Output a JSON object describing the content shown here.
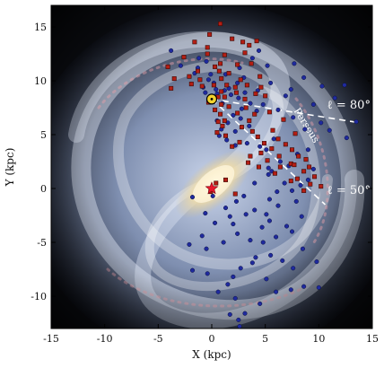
{
  "chart_data": {
    "type": "scatter",
    "title": "",
    "xlabel": "X (kpc)",
    "ylabel": "Y (kpc)",
    "xlim": [
      -15,
      15
    ],
    "ylim": [
      -13,
      17
    ],
    "xticks": [
      -15,
      -10,
      -5,
      0,
      5,
      10,
      15
    ],
    "yticks": [
      -10,
      -5,
      0,
      5,
      10,
      15
    ],
    "background": "Milky Way spiral galaxy artist's impression",
    "grid": false,
    "colors": {
      "blue_series": "#1f2a9e",
      "red_series": "#b41e14",
      "sun": "#f2d22e",
      "galactic_center": "#e8182a",
      "annotation": "#ffffff"
    },
    "annotations": [
      {
        "text": "ℓ = 80°",
        "x": 12.8,
        "y": 7.4
      },
      {
        "text": "ℓ = 50°",
        "x": 12.8,
        "y": -0.5
      },
      {
        "text": "Perseus",
        "x": 8.6,
        "y": 5.7,
        "rotation_deg": 58
      }
    ],
    "lines": [
      {
        "name": "l80",
        "from": [
          0.0,
          8.3
        ],
        "to": [
          13.8,
          6.1
        ]
      },
      {
        "name": "l50",
        "from": [
          0.0,
          8.3
        ],
        "to": [
          10.6,
          -1.5
        ]
      }
    ],
    "markers": [
      {
        "name": "sun",
        "shape": "circle",
        "x": 0.0,
        "y": 8.3
      },
      {
        "name": "galactic-center",
        "shape": "star",
        "x": 0.0,
        "y": 0.0
      }
    ],
    "series": [
      {
        "marker": "circle",
        "points": [
          [
            -3.8,
            12.8
          ],
          [
            -1.2,
            12.1
          ],
          [
            -0.5,
            11.8
          ],
          [
            -1.3,
            11.2
          ],
          [
            -0.3,
            10.1
          ],
          [
            0.2,
            9.8
          ],
          [
            -0.8,
            9.4
          ],
          [
            -0.6,
            8.9
          ],
          [
            0.5,
            8.8
          ],
          [
            1.2,
            9.1
          ],
          [
            1.8,
            8.7
          ],
          [
            2.5,
            8.4
          ],
          [
            3.1,
            8.9
          ],
          [
            3.6,
            7.9
          ],
          [
            4.2,
            7.2
          ],
          [
            2.8,
            7.4
          ],
          [
            2.0,
            6.8
          ],
          [
            1.5,
            6.1
          ],
          [
            0.9,
            5.5
          ],
          [
            0.5,
            6.3
          ],
          [
            0.7,
            4.9
          ],
          [
            1.4,
            4.5
          ],
          [
            2.2,
            4.0
          ],
          [
            3.3,
            4.2
          ],
          [
            4.5,
            3.9
          ],
          [
            5.1,
            3.6
          ],
          [
            5.8,
            4.6
          ],
          [
            6.4,
            2.5
          ],
          [
            7.2,
            2.1
          ],
          [
            8.0,
            3.2
          ],
          [
            9.0,
            3.6
          ],
          [
            9.5,
            1.8
          ],
          [
            8.3,
            0.3
          ],
          [
            9.0,
            0.8
          ],
          [
            7.5,
            -0.2
          ],
          [
            6.8,
            0.5
          ],
          [
            5.3,
            1.3
          ],
          [
            4.0,
            0.5
          ],
          [
            3.0,
            -0.7
          ],
          [
            2.3,
            -1.2
          ],
          [
            1.7,
            -2.6
          ],
          [
            2.0,
            -3.3
          ],
          [
            2.4,
            -4.2
          ],
          [
            3.6,
            -4.8
          ],
          [
            4.8,
            -5.0
          ],
          [
            4.1,
            -6.4
          ],
          [
            3.8,
            -6.9
          ],
          [
            2.7,
            -7.4
          ],
          [
            2.0,
            -8.2
          ],
          [
            1.5,
            -8.9
          ],
          [
            0.6,
            -9.6
          ],
          [
            2.2,
            -10.2
          ],
          [
            4.5,
            -10.7
          ],
          [
            6.0,
            -9.6
          ],
          [
            7.4,
            -9.4
          ],
          [
            8.6,
            -9.1
          ],
          [
            10.0,
            -9.2
          ],
          [
            7.6,
            -7.4
          ],
          [
            6.6,
            -6.7
          ],
          [
            5.5,
            -6.2
          ],
          [
            6.0,
            -4.5
          ],
          [
            7.5,
            -4.0
          ],
          [
            8.4,
            -2.6
          ],
          [
            7.0,
            -3.5
          ],
          [
            5.4,
            -3.0
          ],
          [
            4.0,
            -2.0
          ],
          [
            6.2,
            -1.6
          ],
          [
            5.4,
            -1.0
          ],
          [
            2.6,
            -12.8
          ],
          [
            3.1,
            -11.6
          ],
          [
            1.7,
            -11.7
          ],
          [
            5.1,
            -8.4
          ],
          [
            -1.8,
            -7.6
          ],
          [
            -0.4,
            -7.9
          ],
          [
            -2.1,
            -5.2
          ],
          [
            -0.9,
            -4.4
          ],
          [
            0.3,
            -3.2
          ],
          [
            1.3,
            -1.8
          ],
          [
            -1.8,
            -0.8
          ],
          [
            -0.6,
            -2.3
          ],
          [
            0.1,
            -0.7
          ],
          [
            11.0,
            5.4
          ],
          [
            12.6,
            4.7
          ],
          [
            10.3,
            9.5
          ],
          [
            11.5,
            8.4
          ],
          [
            9.5,
            7.8
          ],
          [
            8.6,
            10.3
          ],
          [
            7.4,
            9.2
          ],
          [
            5.5,
            9.8
          ],
          [
            5.2,
            11.4
          ],
          [
            4.4,
            12.8
          ],
          [
            3.8,
            12.1
          ],
          [
            2.6,
            11.2
          ],
          [
            1.3,
            10.6
          ],
          [
            -2.9,
            11.4
          ],
          [
            -1.6,
            10.7
          ],
          [
            -0.2,
            8.1
          ],
          [
            1.0,
            7.9
          ],
          [
            2.2,
            5.3
          ],
          [
            3.5,
            5.8
          ],
          [
            6.2,
            7.3
          ],
          [
            7.6,
            6.6
          ],
          [
            8.7,
            5.5
          ],
          [
            10.2,
            6.1
          ],
          [
            12.4,
            9.6
          ],
          [
            13.5,
            6.2
          ],
          [
            7.7,
            11.6
          ],
          [
            6.9,
            8.6
          ],
          [
            4.3,
            9.1
          ],
          [
            3.0,
            10.3
          ],
          [
            2.4,
            9.8
          ],
          [
            1.6,
            9.3
          ],
          [
            0.4,
            9.2
          ],
          [
            -0.1,
            10.6
          ],
          [
            5.6,
            1.6
          ],
          [
            6.1,
            -0.3
          ],
          [
            8.5,
            -5.6
          ],
          [
            9.8,
            -6.8
          ],
          [
            4.7,
            -3.6
          ],
          [
            3.2,
            -2.4
          ],
          [
            1.1,
            -5.0
          ],
          [
            -0.5,
            -5.6
          ],
          [
            2.5,
            -12.2
          ],
          [
            5.3,
            1.9
          ],
          [
            5.1,
            -2.4
          ],
          [
            7.9,
            -1.2
          ],
          [
            4.8,
            7.8
          ],
          [
            2.7,
            6.5
          ]
        ]
      },
      {
        "marker": "square",
        "points": [
          [
            -1.6,
            13.6
          ],
          [
            -0.4,
            13.1
          ],
          [
            0.8,
            15.3
          ],
          [
            -0.2,
            14.3
          ],
          [
            1.9,
            13.9
          ],
          [
            3.5,
            13.3
          ],
          [
            4.2,
            13.7
          ],
          [
            3.1,
            12.6
          ],
          [
            2.4,
            11.5
          ],
          [
            0.8,
            11.6
          ],
          [
            -1.3,
            10.9
          ],
          [
            -2.1,
            10.4
          ],
          [
            -3.5,
            10.2
          ],
          [
            -4.1,
            11.3
          ],
          [
            -2.6,
            12.2
          ],
          [
            -1.1,
            10.1
          ],
          [
            0.9,
            10.2
          ],
          [
            1.6,
            10.7
          ],
          [
            2.7,
            10.1
          ],
          [
            3.3,
            9.6
          ],
          [
            4.5,
            10.4
          ],
          [
            4.6,
            9.4
          ],
          [
            4.1,
            8.8
          ],
          [
            5.0,
            8.6
          ],
          [
            3.1,
            8.3
          ],
          [
            2.2,
            9.4
          ],
          [
            1.4,
            9.6
          ],
          [
            0.6,
            8.5
          ],
          [
            0.9,
            7.8
          ],
          [
            0.3,
            7.3
          ],
          [
            0.8,
            6.9
          ],
          [
            0.6,
            6.2
          ],
          [
            1.2,
            6.3
          ],
          [
            1.0,
            5.8
          ],
          [
            0.5,
            5.2
          ],
          [
            1.3,
            4.9
          ],
          [
            2.8,
            5.7
          ],
          [
            3.8,
            5.3
          ],
          [
            4.3,
            4.8
          ],
          [
            4.9,
            4.2
          ],
          [
            5.6,
            3.7
          ],
          [
            6.2,
            4.6
          ],
          [
            6.9,
            4.1
          ],
          [
            7.5,
            3.6
          ],
          [
            8.1,
            3.0
          ],
          [
            8.8,
            2.7
          ],
          [
            9.1,
            2.0
          ],
          [
            7.4,
            2.3
          ],
          [
            6.4,
            2.0
          ],
          [
            5.9,
            1.4
          ],
          [
            6.3,
            3.0
          ],
          [
            7.7,
            2.2
          ],
          [
            8.6,
            1.6
          ],
          [
            1.3,
            0.8
          ],
          [
            2.2,
            -0.5
          ],
          [
            0.4,
            0.5
          ],
          [
            -0.1,
            -0.3
          ],
          [
            3.4,
            2.4
          ],
          [
            4.4,
            2.0
          ],
          [
            5.2,
            2.6
          ],
          [
            8.0,
            0.9
          ],
          [
            9.2,
            0.4
          ],
          [
            7.4,
            0.7
          ],
          [
            3.5,
            6.3
          ],
          [
            2.6,
            4.3
          ],
          [
            1.9,
            3.9
          ],
          [
            2.3,
            8.9
          ],
          [
            1.2,
            8.5
          ],
          [
            0.9,
            9.0
          ],
          [
            -0.9,
            9.5
          ],
          [
            -0.3,
            8.0
          ],
          [
            0.2,
            9.6
          ],
          [
            0.7,
            10.9
          ],
          [
            1.6,
            7.6
          ],
          [
            2.4,
            7.0
          ],
          [
            3.2,
            7.5
          ],
          [
            4.0,
            6.9
          ],
          [
            5.4,
            7.1
          ],
          [
            6.7,
            6.4
          ],
          [
            7.8,
            5.1
          ],
          [
            5.7,
            5.4
          ],
          [
            4.6,
            3.3
          ],
          [
            3.6,
            3.0
          ],
          [
            9.6,
            1.1
          ],
          [
            10.2,
            0.2
          ],
          [
            8.6,
            -0.2
          ],
          [
            -0.4,
            12.5
          ],
          [
            1.2,
            12.4
          ],
          [
            2.9,
            13.6
          ],
          [
            0.3,
            11.3
          ],
          [
            -1.9,
            9.7
          ],
          [
            -3.8,
            9.3
          ],
          [
            3.7,
            11.6
          ]
        ]
      }
    ]
  }
}
